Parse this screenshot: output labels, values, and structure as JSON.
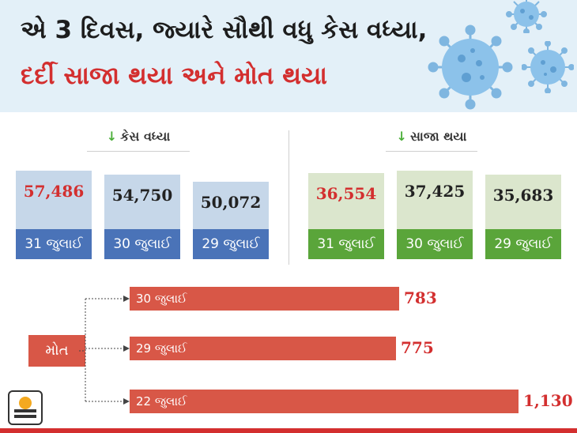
{
  "header": {
    "title_line1": "એ 3 દિવસ, જ્યારે સૌથી વધુ કેસ વધ્યા,",
    "title_line2": "દર્દી સાજા થયા અને મોત થયા"
  },
  "sections": {
    "cases_title": "કેસ વધ્યા",
    "recovered_title": "સાજા થયા",
    "deaths_label": "મોત"
  },
  "colors": {
    "header_bg": "#e3f0f8",
    "cases_bar": "#c6d7e9",
    "cases_date": "#4a73b8",
    "recovered_bar": "#dbe6cd",
    "recovered_date": "#5aa53a",
    "deaths": "#d85747",
    "highlight_value": "#d32f2f"
  },
  "chart_data": [
    {
      "type": "bar",
      "title": "કેસ વધ્યા",
      "categories": [
        "31 જુલાઈ",
        "30 જુલાઈ",
        "29 જુલાઈ"
      ],
      "values": [
        57486,
        54750,
        50072
      ],
      "labels": [
        "57,486",
        "54,750",
        "50,072"
      ],
      "highlight_index": 0
    },
    {
      "type": "bar",
      "title": "સાજા થયા",
      "categories": [
        "31 જુલાઈ",
        "30 જુલાઈ",
        "29 જુલાઈ"
      ],
      "values": [
        36554,
        37425,
        35683
      ],
      "labels": [
        "36,554",
        "37,425",
        "35,683"
      ],
      "highlight_index": 0
    },
    {
      "type": "bar",
      "orientation": "horizontal",
      "title": "મોત",
      "categories": [
        "30 જુલાઈ",
        "29 જુલાઈ",
        "22 જુલાઈ"
      ],
      "values": [
        783,
        775,
        1130
      ],
      "labels": [
        "783",
        "775",
        "1,130"
      ]
    }
  ]
}
